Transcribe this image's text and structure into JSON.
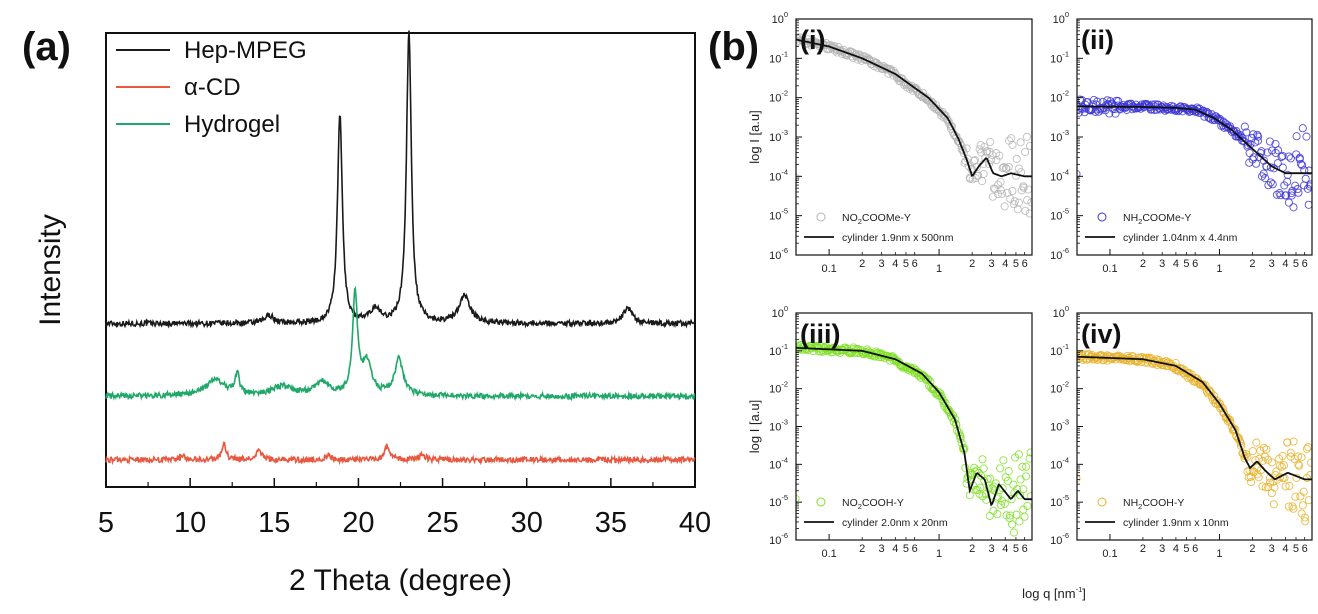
{
  "panel_labels": {
    "a": "(a)",
    "b": "(b)"
  },
  "chart_data": [
    {
      "type": "line",
      "panel": "(a)",
      "xlabel": "2 Theta (degree)",
      "ylabel": "Intensity",
      "xlim": [
        5,
        40
      ],
      "xticks": [
        5,
        10,
        15,
        20,
        25,
        30,
        35,
        40
      ],
      "legend_position": "top-left",
      "series": [
        {
          "name": "Hep-MPEG",
          "color": "#1a1a1a",
          "baseline": 0.36,
          "peaks": [
            [
              14.7,
              0.018,
              0.6
            ],
            [
              18.9,
              0.46,
              0.35
            ],
            [
              21.0,
              0.03,
              0.7
            ],
            [
              23.0,
              0.64,
              0.35
            ],
            [
              26.3,
              0.06,
              0.8
            ],
            [
              36.0,
              0.035,
              0.6
            ]
          ]
        },
        {
          "name": "α-CD",
          "color": "#e8573e",
          "baseline": 0.06,
          "peaks": [
            [
              9.6,
              0.01,
              0.3
            ],
            [
              12.0,
              0.035,
              0.3
            ],
            [
              14.1,
              0.02,
              0.4
            ],
            [
              18.2,
              0.01,
              0.3
            ],
            [
              21.7,
              0.03,
              0.4
            ],
            [
              23.8,
              0.012,
              0.4
            ]
          ]
        },
        {
          "name": "Hydrogel",
          "color": "#1fa868",
          "baseline": 0.2,
          "peaks": [
            [
              11.5,
              0.035,
              1.4
            ],
            [
              12.8,
              0.045,
              0.3
            ],
            [
              15.5,
              0.02,
              1.5
            ],
            [
              17.8,
              0.03,
              1.0
            ],
            [
              19.8,
              0.22,
              0.35
            ],
            [
              20.5,
              0.07,
              0.7
            ],
            [
              22.4,
              0.08,
              0.6
            ]
          ]
        }
      ]
    },
    {
      "type": "scatter",
      "panel": "(i)",
      "xscale": "log",
      "yscale": "log",
      "xlim": [
        0.05,
        7
      ],
      "ylim": [
        1e-06,
        1
      ],
      "ylabel": "log I [a.u]",
      "xlabel": "log q [nm-1]",
      "legend_position": "bottom-left",
      "marker_color": "#b5b5b5",
      "fit_color": "#111111",
      "legend": {
        "data": "NO2COOMe-Y",
        "fit": "cylinder 1.9nm x 500nm"
      },
      "fit": [
        [
          0.05,
          0.3
        ],
        [
          0.1,
          0.2
        ],
        [
          0.2,
          0.1
        ],
        [
          0.4,
          0.04
        ],
        [
          0.8,
          0.01
        ],
        [
          1.2,
          0.003
        ],
        [
          1.5,
          0.0009
        ],
        [
          1.8,
          0.00025
        ],
        [
          2.0,
          0.0001
        ],
        [
          2.3,
          0.00018
        ],
        [
          2.7,
          0.0003
        ],
        [
          3.1,
          0.00012
        ],
        [
          3.7,
          0.0001
        ],
        [
          4.5,
          0.00012
        ],
        [
          6.0,
          0.0001
        ]
      ]
    },
    {
      "type": "scatter",
      "panel": "(ii)",
      "xscale": "log",
      "yscale": "log",
      "xlim": [
        0.05,
        7
      ],
      "ylim": [
        1e-06,
        1
      ],
      "xlabel": "log q [nm-1]",
      "legend_position": "bottom-left",
      "marker_color": "#3b35d6",
      "fit_color": "#111111",
      "legend": {
        "data": "NH2COOMe-Y",
        "fit": "cylinder 1.04nm x 4.4nm"
      },
      "fit": [
        [
          0.05,
          0.006
        ],
        [
          0.2,
          0.0058
        ],
        [
          0.4,
          0.0055
        ],
        [
          0.6,
          0.005
        ],
        [
          0.9,
          0.003
        ],
        [
          1.3,
          0.0015
        ],
        [
          2.0,
          0.0005
        ],
        [
          3.0,
          0.00018
        ],
        [
          4.0,
          0.00012
        ],
        [
          6.0,
          0.00012
        ]
      ]
    },
    {
      "type": "scatter",
      "panel": "(iii)",
      "xscale": "log",
      "yscale": "log",
      "xlim": [
        0.05,
        7
      ],
      "ylim": [
        1e-06,
        1
      ],
      "ylabel": "log I [a.u]",
      "xlabel": "log q [nm-1]",
      "legend_position": "bottom-left",
      "marker_color": "#7ee023",
      "fit_color": "#111111",
      "legend": {
        "data": "NO2COOH-Y",
        "fit": "cylinder 2.0nm x 20nm"
      },
      "fit": [
        [
          0.05,
          0.12
        ],
        [
          0.2,
          0.1
        ],
        [
          0.4,
          0.06
        ],
        [
          0.7,
          0.025
        ],
        [
          1.0,
          0.008
        ],
        [
          1.4,
          0.0015
        ],
        [
          1.7,
          0.0002
        ],
        [
          1.9,
          2e-05
        ],
        [
          2.2,
          6e-05
        ],
        [
          2.6,
          4e-05
        ],
        [
          3.0,
          8e-06
        ],
        [
          3.5,
          3e-05
        ],
        [
          4.5,
          1.2e-05
        ],
        [
          5.2,
          2e-05
        ],
        [
          6.0,
          1.2e-05
        ]
      ]
    },
    {
      "type": "scatter",
      "panel": "(iv)",
      "xscale": "log",
      "yscale": "log",
      "xlim": [
        0.05,
        7
      ],
      "ylim": [
        1e-06,
        1
      ],
      "xlabel": "log q [nm-1]",
      "legend_position": "bottom-left",
      "marker_color": "#e8b12a",
      "fit_color": "#111111",
      "legend": {
        "data": "NH2COOH-Y",
        "fit": "cylinder 1.9nm x 10nm"
      },
      "fit": [
        [
          0.05,
          0.07
        ],
        [
          0.2,
          0.06
        ],
        [
          0.4,
          0.04
        ],
        [
          0.7,
          0.015
        ],
        [
          1.0,
          0.004
        ],
        [
          1.4,
          0.0008
        ],
        [
          1.7,
          0.00015
        ],
        [
          1.9,
          8e-05
        ],
        [
          2.2,
          0.00012
        ],
        [
          2.6,
          7e-05
        ],
        [
          3.2,
          4e-05
        ],
        [
          4.2,
          6e-05
        ],
        [
          6.0,
          4e-05
        ]
      ]
    }
  ],
  "saxs_common": {
    "ylabel_text": "log I [a.u]",
    "xlabel_main": "log q [nm",
    "xlabel_sup": "-1",
    "xlabel_close": "]",
    "x_tick_labels": [
      "0.1",
      "2",
      "3",
      "4",
      "5",
      "6",
      "1",
      "2",
      "3",
      "4",
      "5",
      "6"
    ],
    "y_tick_exponents": [
      "0",
      "-1",
      "-2",
      "-3",
      "-4",
      "-5",
      "-6"
    ],
    "y_tick_base": "10"
  }
}
